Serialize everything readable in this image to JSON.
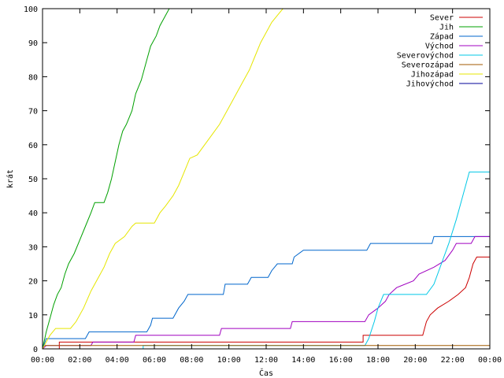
{
  "chart_data": {
    "type": "line",
    "title": "",
    "xlabel": "Čas",
    "ylabel": "krát",
    "xlim": [
      0,
      24
    ],
    "ylim": [
      0,
      100
    ],
    "x_ticks": [
      {
        "v": 0,
        "label": "00:00"
      },
      {
        "v": 2,
        "label": "02:00"
      },
      {
        "v": 4,
        "label": "04:00"
      },
      {
        "v": 6,
        "label": "06:00"
      },
      {
        "v": 8,
        "label": "08:00"
      },
      {
        "v": 10,
        "label": "10:00"
      },
      {
        "v": 12,
        "label": "12:00"
      },
      {
        "v": 14,
        "label": "14:00"
      },
      {
        "v": 16,
        "label": "16:00"
      },
      {
        "v": 18,
        "label": "18:00"
      },
      {
        "v": 20,
        "label": "20:00"
      },
      {
        "v": 22,
        "label": "22:00"
      },
      {
        "v": 24,
        "label": "00:00"
      }
    ],
    "y_ticks": [
      {
        "v": 0,
        "label": "0"
      },
      {
        "v": 10,
        "label": "10"
      },
      {
        "v": 20,
        "label": "20"
      },
      {
        "v": 30,
        "label": "30"
      },
      {
        "v": 40,
        "label": "40"
      },
      {
        "v": 50,
        "label": "50"
      },
      {
        "v": 60,
        "label": "60"
      },
      {
        "v": 70,
        "label": "70"
      },
      {
        "v": 80,
        "label": "80"
      },
      {
        "v": 90,
        "label": "90"
      },
      {
        "v": 100,
        "label": "100"
      }
    ],
    "grid": false,
    "legend_position": "top-right",
    "series": [
      {
        "name": "Sever",
        "color": "#cc0000",
        "points": [
          [
            0.9,
            0
          ],
          [
            0.9,
            2
          ],
          [
            17.2,
            2
          ],
          [
            17.2,
            4
          ],
          [
            20.4,
            4
          ],
          [
            20.6,
            8
          ],
          [
            20.8,
            10
          ],
          [
            21.2,
            12
          ],
          [
            21.8,
            14
          ],
          [
            22.3,
            16
          ],
          [
            22.7,
            18
          ],
          [
            22.9,
            21
          ],
          [
            23.1,
            25
          ],
          [
            23.3,
            27
          ],
          [
            24,
            27
          ]
        ]
      },
      {
        "name": "Jih",
        "color": "#00a000",
        "points": [
          [
            0,
            0
          ],
          [
            0.2,
            5
          ],
          [
            0.4,
            9
          ],
          [
            0.6,
            13
          ],
          [
            0.8,
            16
          ],
          [
            1.0,
            18
          ],
          [
            1.2,
            22
          ],
          [
            1.4,
            25
          ],
          [
            1.7,
            28
          ],
          [
            2.0,
            32
          ],
          [
            2.3,
            36
          ],
          [
            2.6,
            40
          ],
          [
            2.8,
            43
          ],
          [
            3.3,
            43
          ],
          [
            3.5,
            46
          ],
          [
            3.7,
            50
          ],
          [
            3.9,
            55
          ],
          [
            4.1,
            60
          ],
          [
            4.3,
            64
          ],
          [
            4.5,
            66
          ],
          [
            4.8,
            70
          ],
          [
            5.0,
            75
          ],
          [
            5.3,
            79
          ],
          [
            5.6,
            85
          ],
          [
            5.8,
            89
          ],
          [
            6.1,
            92
          ],
          [
            6.3,
            95
          ],
          [
            6.6,
            98
          ],
          [
            6.8,
            100
          ]
        ]
      },
      {
        "name": "Západ",
        "color": "#0066cc",
        "points": [
          [
            0,
            0
          ],
          [
            0.2,
            3
          ],
          [
            2.3,
            3
          ],
          [
            2.5,
            5
          ],
          [
            5.6,
            5
          ],
          [
            5.8,
            7
          ],
          [
            5.9,
            9
          ],
          [
            7.0,
            9
          ],
          [
            7.3,
            12
          ],
          [
            7.6,
            14
          ],
          [
            7.8,
            16
          ],
          [
            9.7,
            16
          ],
          [
            9.8,
            19
          ],
          [
            11.0,
            19
          ],
          [
            11.2,
            21
          ],
          [
            12.1,
            21
          ],
          [
            12.3,
            23
          ],
          [
            12.6,
            25
          ],
          [
            13.4,
            25
          ],
          [
            13.5,
            27
          ],
          [
            14.0,
            29
          ],
          [
            17.4,
            29
          ],
          [
            17.6,
            31
          ],
          [
            20.9,
            31
          ],
          [
            21.0,
            33
          ],
          [
            24,
            33
          ]
        ]
      },
      {
        "name": "Východ",
        "color": "#a000c0",
        "points": [
          [
            0,
            0
          ],
          [
            0.2,
            1
          ],
          [
            2.6,
            1
          ],
          [
            2.7,
            2
          ],
          [
            4.9,
            2
          ],
          [
            5.0,
            4
          ],
          [
            9.5,
            4
          ],
          [
            9.6,
            6
          ],
          [
            13.3,
            6
          ],
          [
            13.4,
            8
          ],
          [
            17.3,
            8
          ],
          [
            17.5,
            10
          ],
          [
            18.0,
            12
          ],
          [
            18.4,
            14
          ],
          [
            18.6,
            16
          ],
          [
            19.0,
            18
          ],
          [
            19.9,
            20
          ],
          [
            20.2,
            22
          ],
          [
            21.0,
            24
          ],
          [
            21.6,
            26
          ],
          [
            22.0,
            29
          ],
          [
            22.2,
            31
          ],
          [
            23.0,
            31
          ],
          [
            23.2,
            33
          ],
          [
            24,
            33
          ]
        ]
      },
      {
        "name": "Severovýchod",
        "color": "#00c8e6",
        "points": [
          [
            5.4,
            0
          ],
          [
            5.4,
            1
          ],
          [
            17.3,
            1
          ],
          [
            17.5,
            3
          ],
          [
            17.8,
            8
          ],
          [
            18.0,
            12
          ],
          [
            18.3,
            16
          ],
          [
            20.6,
            16
          ],
          [
            21.0,
            19
          ],
          [
            21.4,
            25
          ],
          [
            21.8,
            31
          ],
          [
            22.2,
            38
          ],
          [
            22.6,
            46
          ],
          [
            22.9,
            52
          ],
          [
            24,
            52
          ]
        ]
      },
      {
        "name": "Severozápad",
        "color": "#a05a00",
        "points": [
          [
            0,
            0
          ],
          [
            0.1,
            1
          ],
          [
            24,
            1
          ]
        ]
      },
      {
        "name": "Jihozápad",
        "color": "#e6e600",
        "points": [
          [
            0,
            0
          ],
          [
            0.2,
            2
          ],
          [
            0.4,
            4
          ],
          [
            0.7,
            6
          ],
          [
            1.5,
            6
          ],
          [
            1.8,
            8
          ],
          [
            2.2,
            12
          ],
          [
            2.6,
            17
          ],
          [
            3.0,
            21
          ],
          [
            3.3,
            24
          ],
          [
            3.6,
            28
          ],
          [
            3.9,
            31
          ],
          [
            4.4,
            33
          ],
          [
            4.8,
            36
          ],
          [
            5.0,
            37
          ],
          [
            6.0,
            37
          ],
          [
            6.3,
            40
          ],
          [
            6.6,
            42
          ],
          [
            7.0,
            45
          ],
          [
            7.3,
            48
          ],
          [
            7.6,
            52
          ],
          [
            7.9,
            56
          ],
          [
            8.3,
            57
          ],
          [
            8.7,
            60
          ],
          [
            9.1,
            63
          ],
          [
            9.5,
            66
          ],
          [
            9.9,
            70
          ],
          [
            10.3,
            74
          ],
          [
            10.7,
            78
          ],
          [
            11.1,
            82
          ],
          [
            11.4,
            86
          ],
          [
            11.7,
            90
          ],
          [
            12.0,
            93
          ],
          [
            12.3,
            96
          ],
          [
            12.6,
            98
          ],
          [
            12.9,
            100
          ]
        ]
      },
      {
        "name": "Jihovýchod",
        "color": "#000099",
        "points": []
      }
    ]
  }
}
